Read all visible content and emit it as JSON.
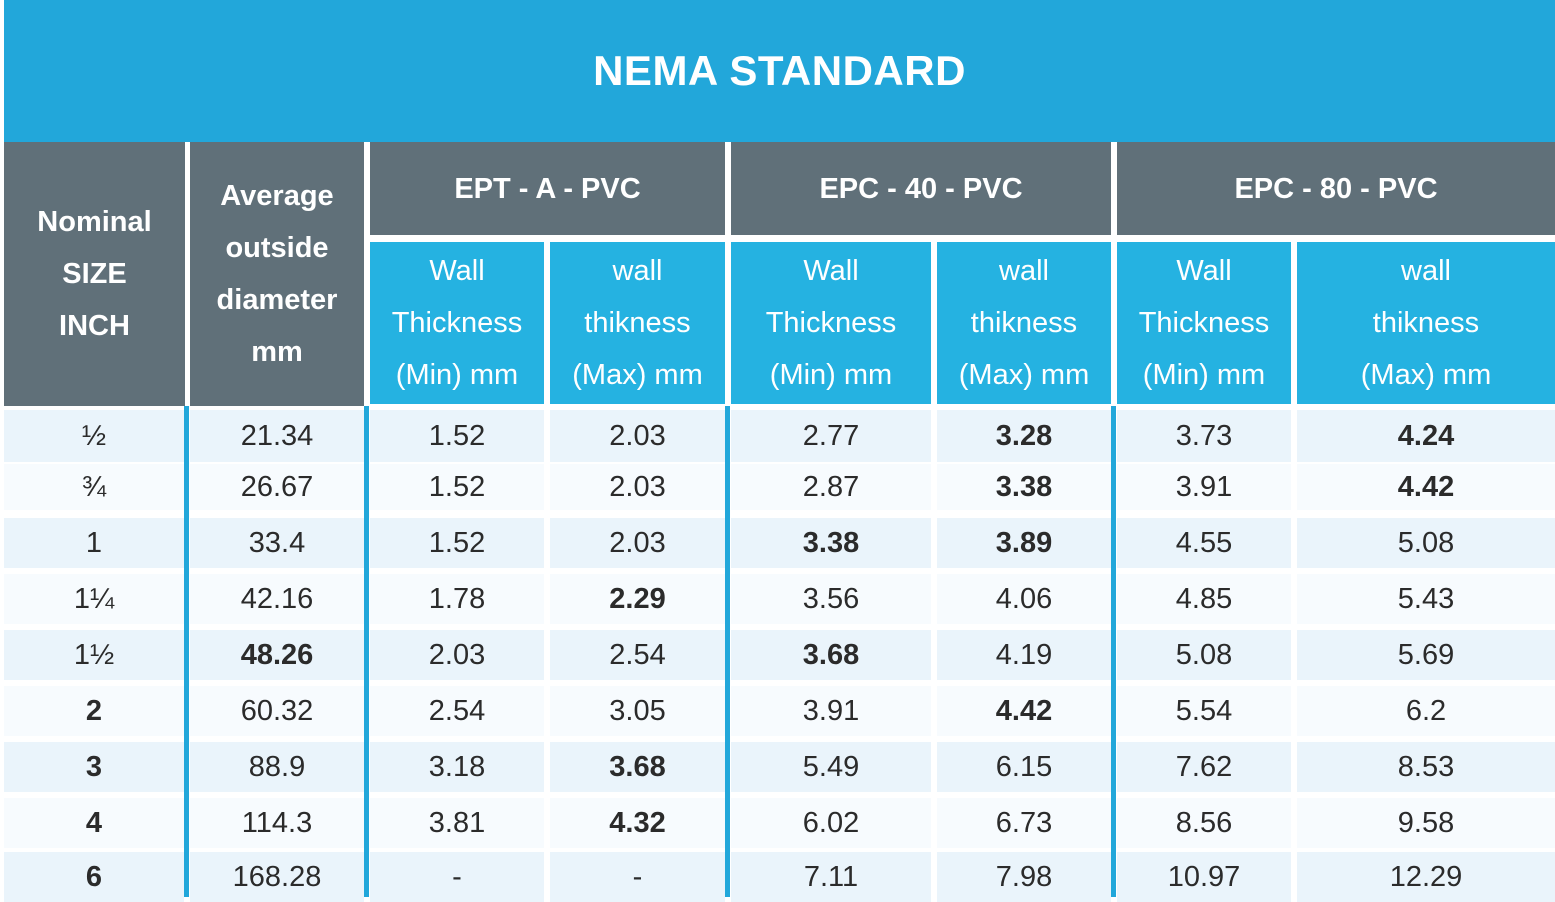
{
  "title": "NEMA STANDARD",
  "header": {
    "nominal": [
      "Nominal",
      "SIZE",
      "INCH"
    ],
    "average": [
      "Average",
      "outside",
      "diameter",
      "mm"
    ],
    "groups": [
      "EPT - A - PVC",
      "EPC - 40 - PVC",
      "EPC - 80 - PVC"
    ],
    "sub_min": [
      "Wall",
      "Thickness",
      "(Min) mm"
    ],
    "sub_max": [
      "wall",
      "thikness",
      "(Max) mm"
    ]
  },
  "rows": [
    {
      "size": "½",
      "od": "21.34",
      "a_min": "1.52",
      "a_max": "2.03",
      "b_min": "2.77",
      "b_max": "3.28",
      "c_min": "3.73",
      "c_max": "4.24"
    },
    {
      "size": "¾",
      "od": "26.67",
      "a_min": "1.52",
      "a_max": "2.03",
      "b_min": "2.87",
      "b_max": "3.38",
      "c_min": "3.91",
      "c_max": "4.42"
    },
    {
      "size": "1",
      "od": "33.4",
      "a_min": "1.52",
      "a_max": "2.03",
      "b_min": "3.38",
      "b_max": "3.89",
      "c_min": "4.55",
      "c_max": "5.08"
    },
    {
      "size": "1¼",
      "od": "42.16",
      "a_min": "1.78",
      "a_max": "2.29",
      "b_min": "3.56",
      "b_max": "4.06",
      "c_min": "4.85",
      "c_max": "5.43"
    },
    {
      "size": "1½",
      "od": "48.26",
      "a_min": "2.03",
      "a_max": "2.54",
      "b_min": "3.68",
      "b_max": "4.19",
      "c_min": "5.08",
      "c_max": "5.69"
    },
    {
      "size": "2",
      "od": "60.32",
      "a_min": "2.54",
      "a_max": "3.05",
      "b_min": "3.91",
      "b_max": "4.42",
      "c_min": "5.54",
      "c_max": "6.2"
    },
    {
      "size": "3",
      "od": "88.9",
      "a_min": "3.18",
      "a_max": "3.68",
      "b_min": "5.49",
      "b_max": "6.15",
      "c_min": "7.62",
      "c_max": "8.53"
    },
    {
      "size": "4",
      "od": "114.3",
      "a_min": "3.81",
      "a_max": "4.32",
      "b_min": "6.02",
      "b_max": "6.73",
      "c_min": "8.56",
      "c_max": "9.58"
    },
    {
      "size": "6",
      "od": "168.28",
      "a_min": "-",
      "a_max": "-",
      "b_min": "7.11",
      "b_max": "7.98",
      "c_min": "10.97",
      "c_max": "12.29"
    }
  ],
  "bold_cells": [
    [
      0,
      "b_max"
    ],
    [
      0,
      "c_max"
    ],
    [
      1,
      "b_max"
    ],
    [
      1,
      "c_max"
    ],
    [
      2,
      "b_min"
    ],
    [
      2,
      "b_max"
    ],
    [
      3,
      "a_max"
    ],
    [
      4,
      "od"
    ],
    [
      4,
      "b_min"
    ],
    [
      5,
      "size"
    ],
    [
      5,
      "b_max"
    ],
    [
      6,
      "size"
    ],
    [
      6,
      "a_max"
    ],
    [
      7,
      "size"
    ],
    [
      7,
      "a_max"
    ],
    [
      8,
      "size"
    ]
  ],
  "colors": {
    "title_band": "#22a7da",
    "header_grey": "#607079",
    "header_blue": "#25b2e1",
    "row_light": "#eaf4fb",
    "row_white": "#f7fbfe",
    "divider": "#22a7da"
  }
}
